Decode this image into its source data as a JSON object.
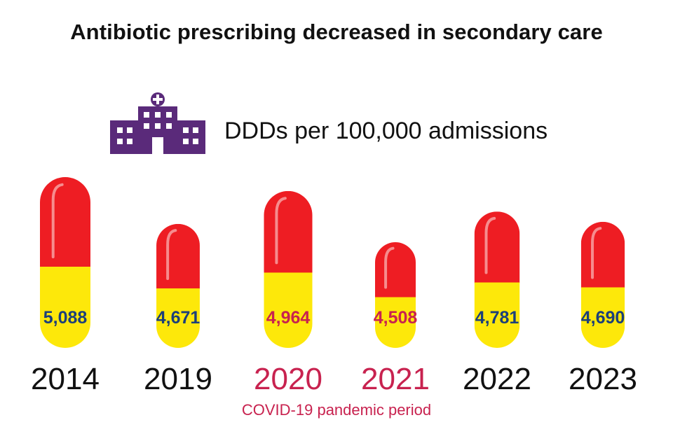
{
  "header": {
    "title": "Antibiotic prescribing decreased in secondary care",
    "subtitle": "DDDs per 100,000 admissions"
  },
  "footnote": {
    "text": "COVID-19 pandemic period"
  },
  "colors": {
    "capsule_top": "#ee1d23",
    "capsule_bottom": "#fde80a",
    "highlight": "#f7a9a9",
    "value_normal": "#1b3f7a",
    "value_covid": "#c8224f",
    "year_normal": "#111111",
    "year_covid": "#c8224f",
    "hospital": "#5a2a7a"
  },
  "chart_data": {
    "type": "bar",
    "title": "Antibiotic prescribing decreased in secondary care",
    "ylabel": "DDDs per 100,000 admissions",
    "categories": [
      "2014",
      "2019",
      "2020",
      "2021",
      "2022",
      "2023"
    ],
    "values": [
      5088,
      4671,
      4964,
      4508,
      4781,
      4690
    ],
    "value_labels": [
      "5,088",
      "4,671",
      "4,964",
      "4,508",
      "4,781",
      "4,690"
    ],
    "covid_period": [
      false,
      false,
      true,
      true,
      false,
      false
    ],
    "annotation": "COVID-19 pandemic period"
  }
}
